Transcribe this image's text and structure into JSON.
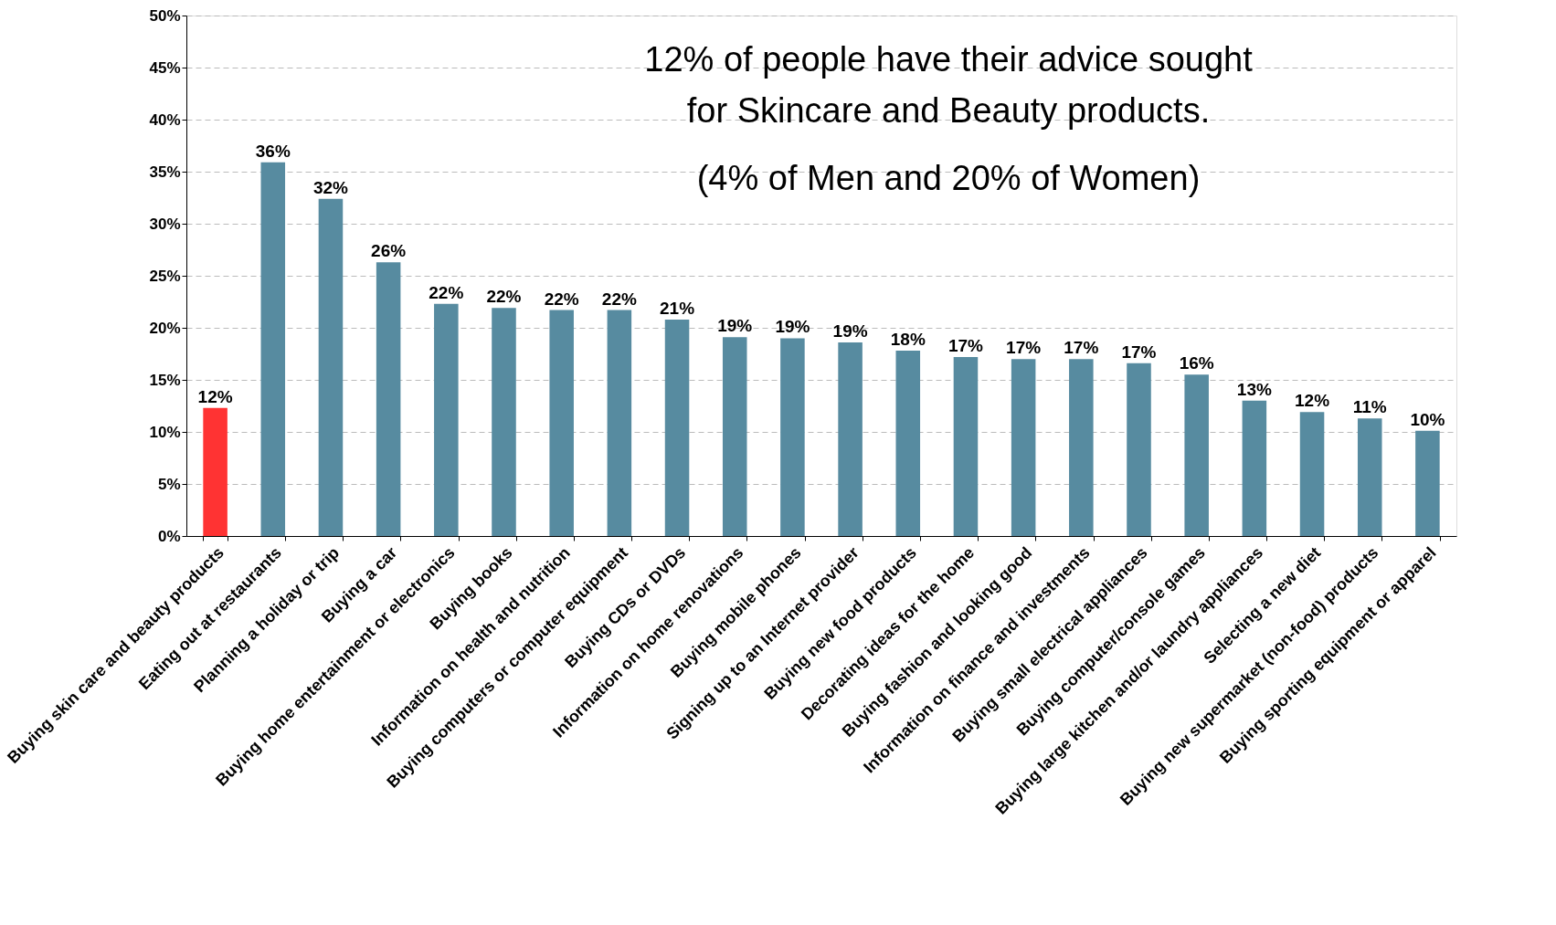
{
  "chart_data": {
    "type": "bar",
    "categories": [
      "Buying skin care and beauty products",
      "Eating out at restaurants",
      "Planning a holiday or trip",
      "Buying a car",
      "Buying home entertainment or electronics",
      "Buying books",
      "Information on health and nutrition",
      "Buying computers or computer equipment",
      "Buying CDs or DVDs",
      "Information on home renovations",
      "Buying mobile phones",
      "Signing up to an Internet provider",
      "Buying new food products",
      "Decorating ideas for the home",
      "Buying fashion and looking good",
      "Information on finance and investments",
      "Buying small electrical appliances",
      "Buying computer/console games",
      "Buying large kitchen and/or laundry appliances",
      "Selecting a new diet",
      "Buying new supermarket (non-food) products",
      "Buying sporting equipment or apparel"
    ],
    "values": [
      12.3,
      35.9,
      32.4,
      26.3,
      22.3,
      21.9,
      21.7,
      21.7,
      20.8,
      19.1,
      19.0,
      18.6,
      17.8,
      17.2,
      17.0,
      17.0,
      16.6,
      15.5,
      13.0,
      11.9,
      11.3,
      10.1
    ],
    "value_labels": [
      "12%",
      "36%",
      "32%",
      "26%",
      "22%",
      "22%",
      "22%",
      "22%",
      "21%",
      "19%",
      "19%",
      "19%",
      "18%",
      "17%",
      "17%",
      "17%",
      "17%",
      "16%",
      "13%",
      "12%",
      "11%",
      "10%"
    ],
    "colors": [
      "#ff3333",
      "#578ba0",
      "#578ba0",
      "#578ba0",
      "#578ba0",
      "#578ba0",
      "#578ba0",
      "#578ba0",
      "#578ba0",
      "#578ba0",
      "#578ba0",
      "#578ba0",
      "#578ba0",
      "#578ba0",
      "#578ba0",
      "#578ba0",
      "#578ba0",
      "#578ba0",
      "#578ba0",
      "#578ba0",
      "#578ba0",
      "#578ba0"
    ],
    "ylim": [
      0,
      50
    ],
    "yticks": [
      {
        "value": 0,
        "label": "0%"
      },
      {
        "value": 5,
        "label": "5%"
      },
      {
        "value": 10,
        "label": "10%"
      },
      {
        "value": 15,
        "label": "15%"
      },
      {
        "value": 20,
        "label": "20%"
      },
      {
        "value": 25,
        "label": "25%"
      },
      {
        "value": 30,
        "label": "30%"
      },
      {
        "value": 35,
        "label": "35%"
      },
      {
        "value": 40,
        "label": "40%"
      },
      {
        "value": 45,
        "label": "45%"
      },
      {
        "value": 50,
        "label": "50%"
      }
    ],
    "grid": "y",
    "legend": false,
    "annotations": [
      "12% of people have their advice sought\nfor Skincare and Beauty products.",
      "(4% of Men and 20% of Women)"
    ]
  }
}
